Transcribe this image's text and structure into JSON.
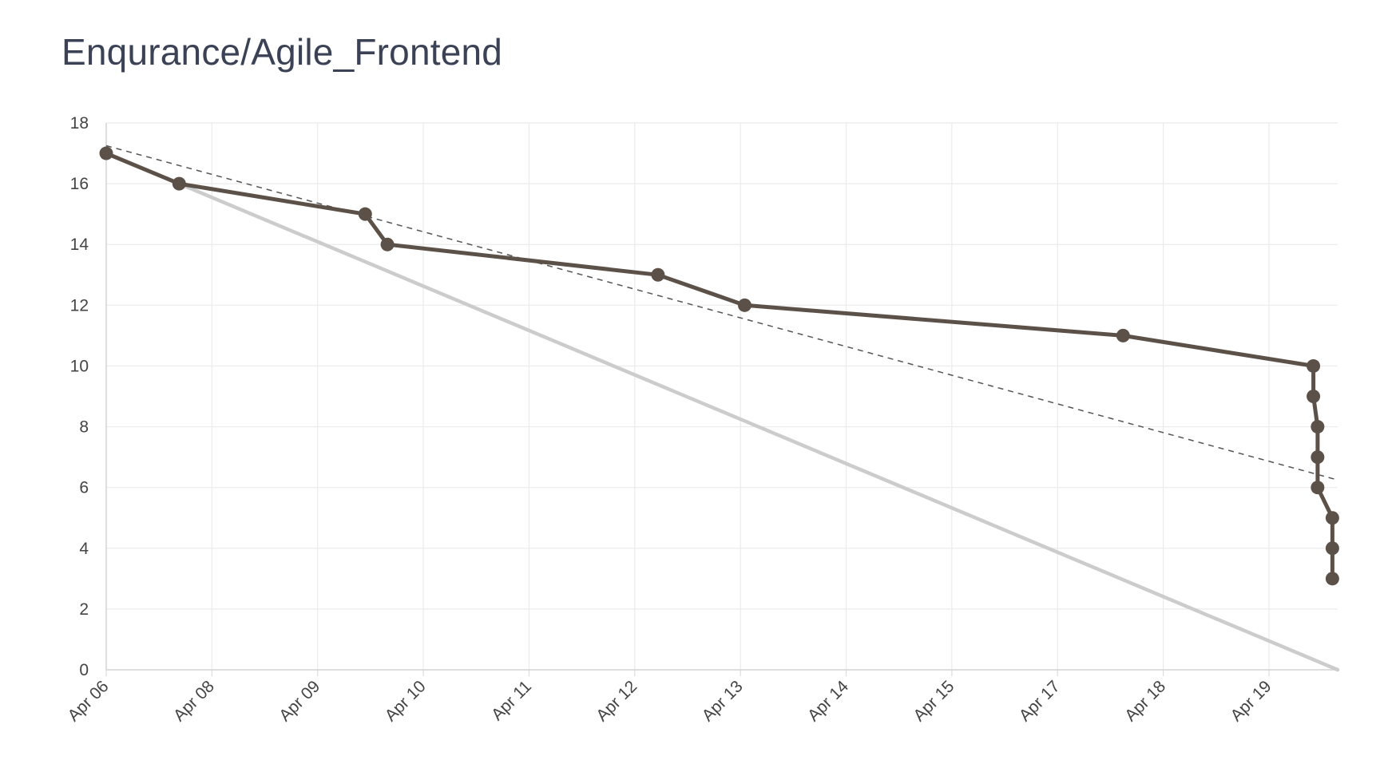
{
  "title": "Enqurance/Agile_Frontend",
  "chart_data": {
    "type": "line",
    "title": "Enqurance/Agile_Frontend",
    "xlabel": "",
    "ylabel": "",
    "ylim": [
      0,
      18
    ],
    "yticks": [
      0,
      2,
      4,
      6,
      8,
      10,
      12,
      14,
      16,
      18
    ],
    "xticks": [
      "Apr 06",
      "Apr 08",
      "Apr 09",
      "Apr 10",
      "Apr 11",
      "Apr 12",
      "Apr 13",
      "Apr 14",
      "Apr 15",
      "Apr 17",
      "Apr 18",
      "Apr 19"
    ],
    "x_positions": [
      0,
      1,
      2,
      3,
      4,
      5,
      6,
      7,
      8,
      9,
      10,
      11
    ],
    "xlim": [
      0,
      11.65
    ],
    "grid": true,
    "series": [
      {
        "role": "actual",
        "style": "solid-dark-with-markers",
        "color": "#5c5149",
        "points": [
          {
            "x": 0.0,
            "y": 17
          },
          {
            "x": 0.69,
            "y": 16
          },
          {
            "x": 2.45,
            "y": 15
          },
          {
            "x": 2.66,
            "y": 14
          },
          {
            "x": 5.22,
            "y": 13
          },
          {
            "x": 6.04,
            "y": 12
          },
          {
            "x": 9.62,
            "y": 11
          },
          {
            "x": 11.42,
            "y": 10
          },
          {
            "x": 11.42,
            "y": 9
          },
          {
            "x": 11.46,
            "y": 8
          },
          {
            "x": 11.46,
            "y": 7
          },
          {
            "x": 11.46,
            "y": 6
          },
          {
            "x": 11.6,
            "y": 5
          },
          {
            "x": 11.6,
            "y": 4
          },
          {
            "x": 11.6,
            "y": 3
          }
        ]
      },
      {
        "role": "ideal",
        "style": "solid-light-gray",
        "color": "#cccccc",
        "points": [
          {
            "x": 0.69,
            "y": 16
          },
          {
            "x": 11.65,
            "y": 0
          }
        ]
      },
      {
        "role": "trend",
        "style": "dashed",
        "color": "#555555",
        "points": [
          {
            "x": 0.0,
            "y": 17.25
          },
          {
            "x": 11.65,
            "y": 6.25
          }
        ]
      }
    ]
  }
}
